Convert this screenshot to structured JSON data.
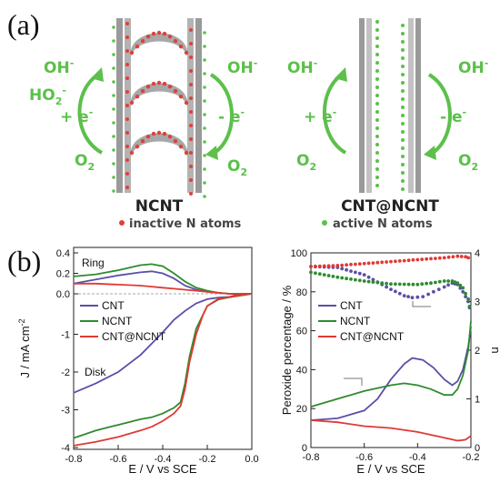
{
  "panel_a": {
    "tag": "(a)",
    "left": {
      "title": "NCNT",
      "caption": "inactive N atoms",
      "species": [
        "OH",
        "HO",
        "+ e",
        "O",
        "OH",
        "- e",
        "O"
      ]
    },
    "right": {
      "title": "CNT@NCNT",
      "caption": "active N atoms",
      "species": [
        "OH",
        "+ e",
        "O",
        "OH",
        "- e",
        "O"
      ]
    },
    "colors": {
      "green": "#5cc04b",
      "inactive_dot": "#e0403a",
      "tube": "#9a9a9a"
    }
  },
  "panel_b": {
    "tag": "(b)"
  },
  "chart_data": [
    {
      "type": "line",
      "xlabel": "E / V vs SCE",
      "ylabel": "J / mA cm",
      "ylabel_sup": "-2",
      "xlim": [
        -0.8,
        0.0
      ],
      "ylim": [
        -4.0,
        0.4
      ],
      "xticks": [
        "-0.8",
        "-0.6",
        "-0.4",
        "-0.2",
        "0.0"
      ],
      "yticks": [
        "-4",
        "-3",
        "-2",
        "-1",
        "0.0",
        "0.2",
        "0.4"
      ],
      "annotations": [
        "Ring",
        "Disk"
      ],
      "series": [
        {
          "name": "CNT",
          "color": "#5a4fa8",
          "role": "disk",
          "x": [
            -0.8,
            -0.7,
            -0.6,
            -0.5,
            -0.45,
            -0.4,
            -0.35,
            -0.3,
            -0.25,
            -0.2,
            -0.15,
            -0.1,
            -0.05,
            0.0
          ],
          "y": [
            -2.55,
            -2.3,
            -2.0,
            -1.55,
            -1.25,
            -0.95,
            -0.62,
            -0.38,
            -0.18,
            -0.07,
            -0.03,
            -0.01,
            0.0,
            0.0
          ]
        },
        {
          "name": "NCNT",
          "color": "#2e8b2e",
          "role": "disk",
          "x": [
            -0.8,
            -0.7,
            -0.6,
            -0.5,
            -0.45,
            -0.4,
            -0.35,
            -0.32,
            -0.3,
            -0.28,
            -0.25,
            -0.2,
            -0.15,
            -0.1,
            0.0
          ],
          "y": [
            -3.75,
            -3.55,
            -3.4,
            -3.25,
            -3.2,
            -3.1,
            -2.95,
            -2.8,
            -2.3,
            -1.6,
            -0.85,
            -0.25,
            -0.08,
            -0.02,
            0.0
          ]
        },
        {
          "name": "CNT@NCNT",
          "color": "#e03a34",
          "role": "disk",
          "x": [
            -0.8,
            -0.7,
            -0.6,
            -0.5,
            -0.45,
            -0.4,
            -0.35,
            -0.32,
            -0.3,
            -0.28,
            -0.25,
            -0.22,
            -0.2,
            -0.15,
            -0.1,
            0.0
          ],
          "y": [
            -3.95,
            -3.85,
            -3.72,
            -3.55,
            -3.45,
            -3.3,
            -3.1,
            -2.9,
            -2.45,
            -1.75,
            -1.0,
            -0.5,
            -0.25,
            -0.06,
            -0.01,
            0.0
          ]
        },
        {
          "name": "CNT ring",
          "color": "#5a4fa8",
          "role": "ring",
          "x": [
            -0.8,
            -0.7,
            -0.6,
            -0.5,
            -0.45,
            -0.4,
            -0.35,
            -0.3,
            -0.25,
            -0.2,
            -0.15,
            -0.1,
            0.0
          ],
          "y": [
            0.1,
            0.14,
            0.18,
            0.21,
            0.22,
            0.2,
            0.15,
            0.08,
            0.04,
            0.02,
            0.01,
            0.0,
            0.0
          ]
        },
        {
          "name": "NCNT ring",
          "color": "#2e8b2e",
          "role": "ring",
          "x": [
            -0.8,
            -0.7,
            -0.6,
            -0.5,
            -0.45,
            -0.4,
            -0.35,
            -0.3,
            -0.25,
            -0.2,
            -0.15,
            -0.1,
            0.0
          ],
          "y": [
            0.17,
            0.19,
            0.23,
            0.28,
            0.29,
            0.27,
            0.2,
            0.12,
            0.06,
            0.03,
            0.01,
            0.0,
            0.0
          ]
        },
        {
          "name": "CNT@NCNT ring",
          "color": "#e03a34",
          "role": "ring",
          "x": [
            -0.8,
            -0.7,
            -0.6,
            -0.5,
            -0.45,
            -0.4,
            -0.35,
            -0.3,
            -0.25,
            -0.2,
            -0.15,
            -0.1,
            0.0
          ],
          "y": [
            0.1,
            0.1,
            0.09,
            0.08,
            0.07,
            0.06,
            0.05,
            0.04,
            0.03,
            0.02,
            0.01,
            0.0,
            0.0
          ]
        }
      ]
    },
    {
      "type": "line",
      "xlabel": "E / V vs SCE",
      "ylabel": "Peroxide percentage / %",
      "y2label": "n",
      "xlim": [
        -0.8,
        -0.2
      ],
      "ylim": [
        0,
        100
      ],
      "y2lim": [
        0,
        4
      ],
      "xticks": [
        "-0.8",
        "-0.6",
        "-0.4",
        "-0.2"
      ],
      "yticks": [
        "0",
        "20",
        "40",
        "60",
        "80",
        "100"
      ],
      "y2ticks": [
        "0",
        "1",
        "2",
        "3",
        "4"
      ],
      "series": [
        {
          "name": "CNT",
          "color": "#5a4fa8",
          "axis": "left",
          "style": "solid",
          "x": [
            -0.8,
            -0.7,
            -0.6,
            -0.55,
            -0.5,
            -0.45,
            -0.42,
            -0.38,
            -0.34,
            -0.3,
            -0.27,
            -0.25,
            -0.23,
            -0.21,
            -0.2
          ],
          "y": [
            14,
            15,
            19,
            25,
            35,
            43,
            46,
            45,
            41,
            35,
            32,
            34,
            40,
            52,
            62
          ]
        },
        {
          "name": "NCNT",
          "color": "#2e8b2e",
          "axis": "left",
          "style": "solid",
          "x": [
            -0.8,
            -0.7,
            -0.6,
            -0.5,
            -0.45,
            -0.4,
            -0.35,
            -0.3,
            -0.27,
            -0.25,
            -0.23,
            -0.21,
            -0.2
          ],
          "y": [
            21,
            25,
            29,
            32,
            33,
            32,
            30,
            27,
            27,
            30,
            37,
            50,
            65
          ]
        },
        {
          "name": "CNT@NCNT",
          "color": "#e03a34",
          "axis": "left",
          "style": "solid",
          "x": [
            -0.8,
            -0.7,
            -0.6,
            -0.5,
            -0.4,
            -0.3,
            -0.25,
            -0.22,
            -0.2
          ],
          "y": [
            14,
            13,
            11,
            10,
            8,
            5,
            3.5,
            4,
            6
          ]
        },
        {
          "name": "CNT n",
          "color": "#5a4fa8",
          "axis": "right",
          "style": "dotted",
          "x": [
            -0.8,
            -0.7,
            -0.6,
            -0.5,
            -0.45,
            -0.42,
            -0.38,
            -0.34,
            -0.3,
            -0.27,
            -0.25,
            -0.23,
            -0.21,
            -0.2
          ],
          "y": [
            3.72,
            3.7,
            3.55,
            3.25,
            3.12,
            3.08,
            3.1,
            3.2,
            3.3,
            3.38,
            3.35,
            3.2,
            3.0,
            2.75
          ]
        },
        {
          "name": "NCNT n",
          "color": "#2e8b2e",
          "axis": "right",
          "style": "dotted",
          "x": [
            -0.8,
            -0.7,
            -0.6,
            -0.5,
            -0.4,
            -0.35,
            -0.3,
            -0.27,
            -0.25,
            -0.23,
            -0.21,
            -0.2
          ],
          "y": [
            3.6,
            3.5,
            3.42,
            3.36,
            3.35,
            3.38,
            3.42,
            3.42,
            3.38,
            3.28,
            3.05,
            2.75
          ]
        },
        {
          "name": "CNT@NCNT n",
          "color": "#e03a34",
          "axis": "right",
          "style": "dotted",
          "x": [
            -0.8,
            -0.7,
            -0.6,
            -0.5,
            -0.4,
            -0.3,
            -0.25,
            -0.22,
            -0.2
          ],
          "y": [
            3.72,
            3.74,
            3.78,
            3.82,
            3.86,
            3.9,
            3.93,
            3.92,
            3.88
          ]
        }
      ]
    }
  ]
}
